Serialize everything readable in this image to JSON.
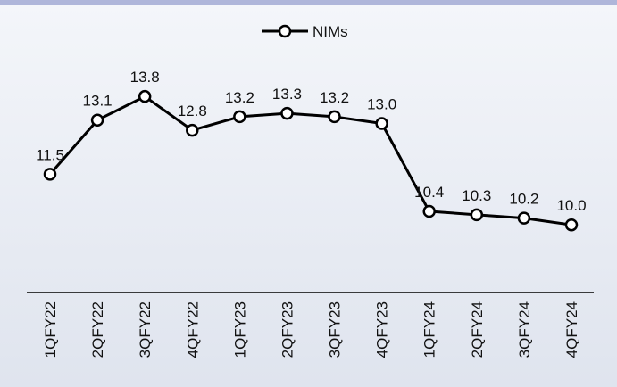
{
  "chart_data": {
    "type": "line",
    "categories": [
      "1QFY22",
      "2QFY22",
      "3QFY22",
      "4QFY22",
      "1QFY23",
      "2QFY23",
      "3QFY23",
      "4QFY23",
      "1QFY24",
      "2QFY24",
      "3QFY24",
      "4QFY24"
    ],
    "series": [
      {
        "name": "NIMs",
        "color": "#000000",
        "values": [
          11.5,
          13.1,
          13.8,
          12.8,
          13.2,
          13.3,
          13.2,
          13.0,
          10.4,
          10.3,
          10.2,
          10.0
        ],
        "value_labels": [
          "11.5",
          "13.1",
          "13.8",
          "12.8",
          "13.2",
          "13.3",
          "13.2",
          "13.0",
          "10.4",
          "10.3",
          "10.2",
          "10.0"
        ]
      }
    ],
    "ylim": [
      8,
      15
    ],
    "legend": "top"
  }
}
